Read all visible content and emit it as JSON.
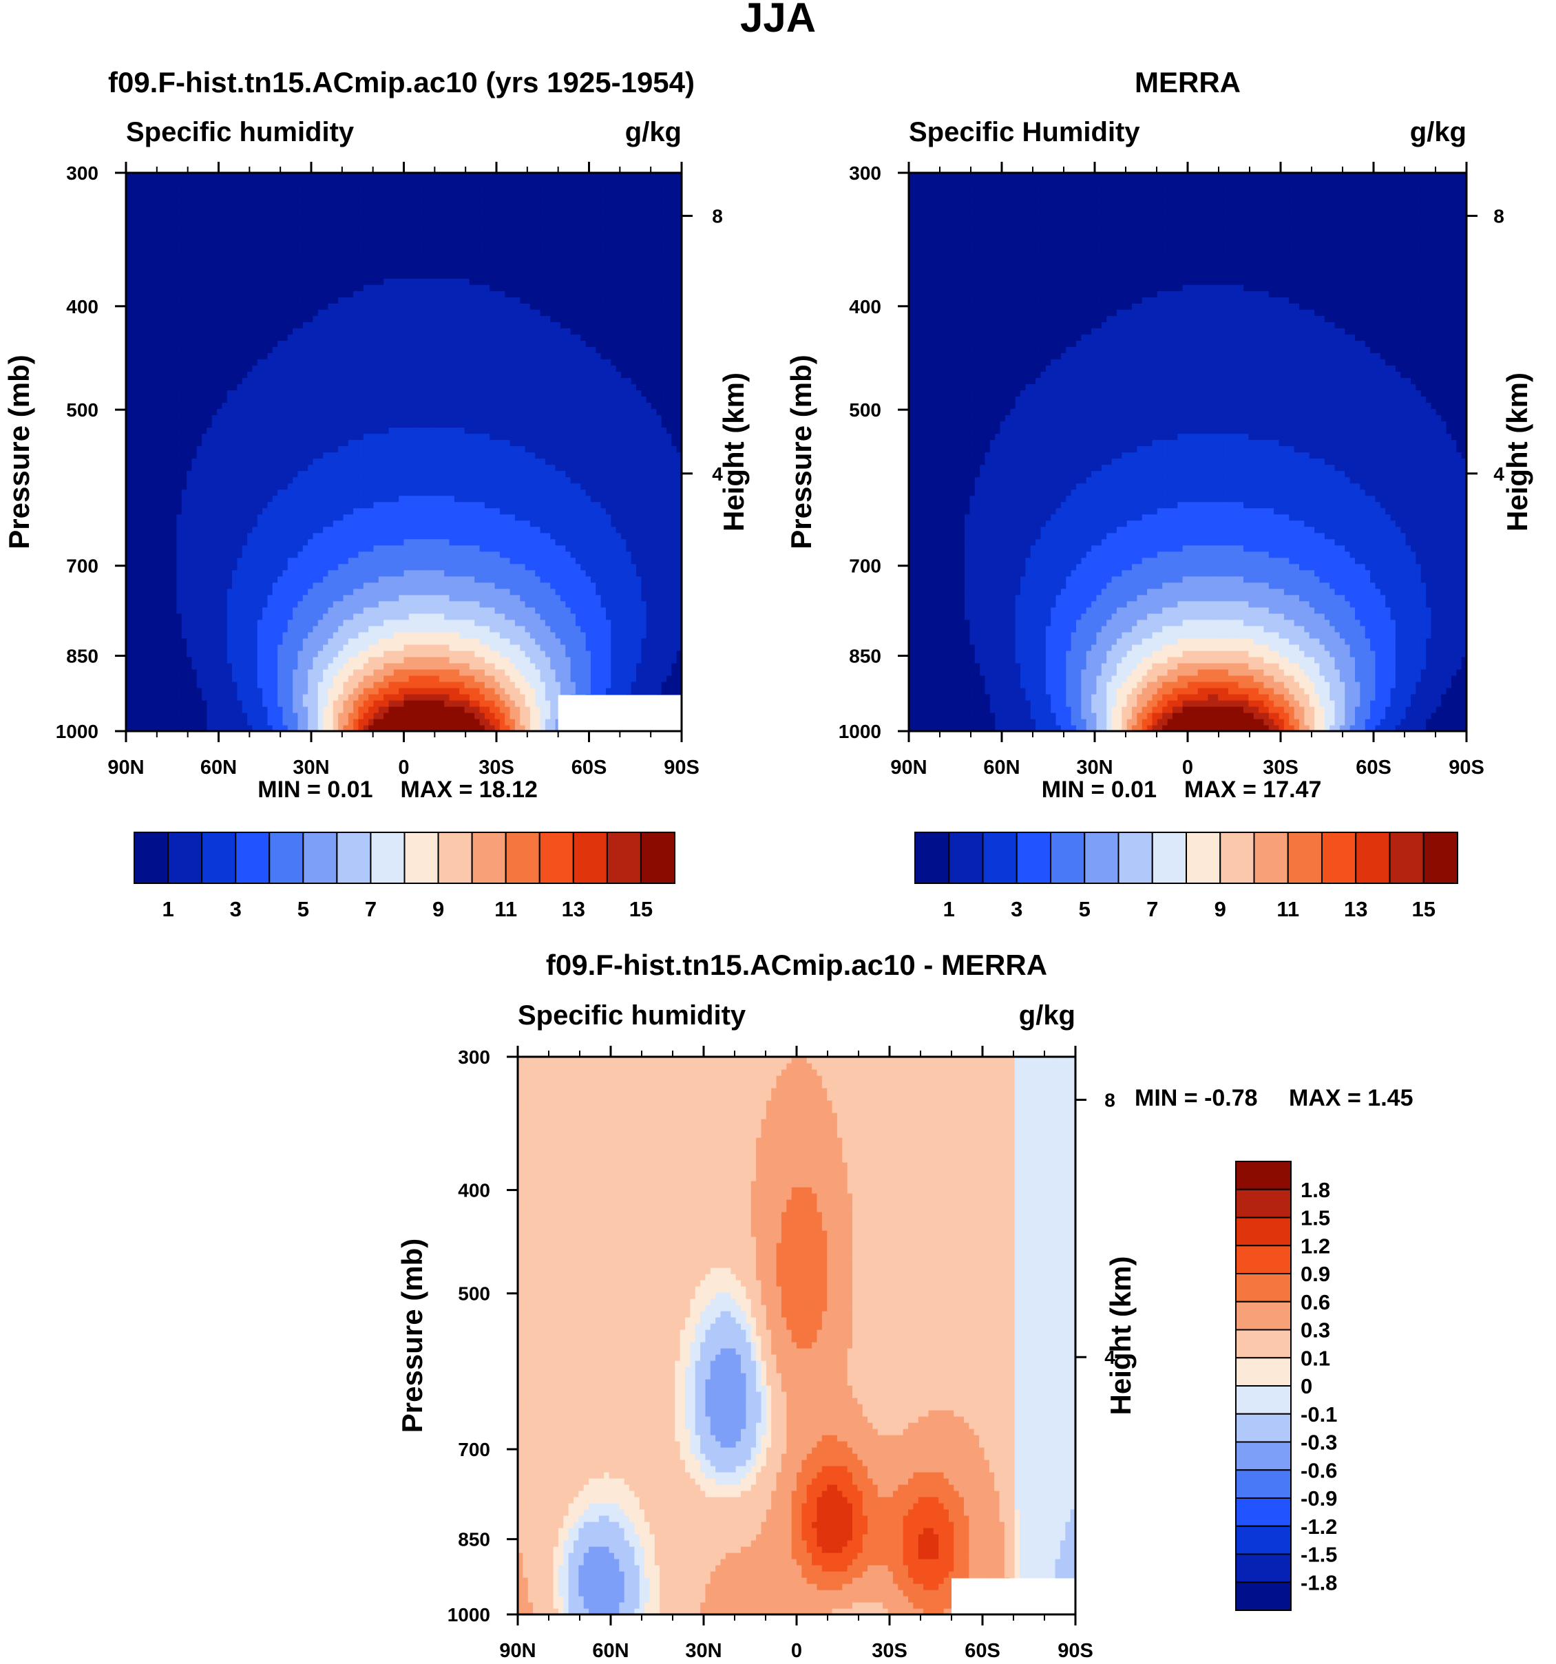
{
  "page_title": "JJA",
  "chart_data": [
    {
      "type": "contour",
      "title": "f09.F-hist.tn15.ACmip.ac10 (yrs 1925-1954)",
      "variable": "Specific humidity",
      "units": "g/kg",
      "ylabel": "Pressure (mb)",
      "y2label": "Height (km)",
      "xlabel": "",
      "xlim": [
        90,
        -90
      ],
      "ylim": [
        1000,
        300
      ],
      "x_ticks": [
        90,
        60,
        30,
        0,
        -30,
        -60,
        -90
      ],
      "x_tick_labels": [
        "90N",
        "60N",
        "30N",
        "0",
        "30S",
        "60S",
        "90S"
      ],
      "y_ticks": [
        300,
        400,
        500,
        700,
        850,
        1000
      ],
      "y_tick_labels": [
        "300",
        "400",
        "500",
        "700",
        "850",
        "1000"
      ],
      "y2_ticks": [
        8,
        4
      ],
      "y2_tick_labels": [
        "8",
        "4"
      ],
      "min_label": "MIN =   0.01",
      "max_label": "MAX =  18.12",
      "min": 0.01,
      "max": 18.12,
      "contour_levels": [
        1,
        2,
        3,
        4,
        5,
        6,
        7,
        8,
        9,
        10,
        11,
        12,
        13,
        14,
        15
      ],
      "colorbar_labels": [
        "1",
        "3",
        "5",
        "7",
        "9",
        "11",
        "13",
        "15"
      ],
      "peak_lat": -7,
      "peak_value": 18.12,
      "missing_region": {
        "lat_from": -50,
        "lat_to": -90,
        "p_from": 925,
        "p_to": 1000
      }
    },
    {
      "type": "contour",
      "title": "MERRA",
      "variable": "Specific Humidity",
      "units": "g/kg",
      "ylabel": "Pressure (mb)",
      "y2label": "Height (km)",
      "xlabel": "",
      "xlim": [
        90,
        -90
      ],
      "ylim": [
        1000,
        300
      ],
      "x_ticks": [
        90,
        60,
        30,
        0,
        -30,
        -60,
        -90
      ],
      "x_tick_labels": [
        "90N",
        "60N",
        "30N",
        "0",
        "30S",
        "60S",
        "90S"
      ],
      "y_ticks": [
        300,
        400,
        500,
        700,
        850,
        1000
      ],
      "y_tick_labels": [
        "300",
        "400",
        "500",
        "700",
        "850",
        "1000"
      ],
      "y2_ticks": [
        8,
        4
      ],
      "y2_tick_labels": [
        "8",
        "4"
      ],
      "min_label": "MIN =   0.01",
      "max_label": "MAX =  17.47",
      "min": 0.01,
      "max": 17.47,
      "contour_levels": [
        1,
        2,
        3,
        4,
        5,
        6,
        7,
        8,
        9,
        10,
        11,
        12,
        13,
        14,
        15
      ],
      "colorbar_labels": [
        "1",
        "3",
        "5",
        "7",
        "9",
        "11",
        "13",
        "15"
      ],
      "peak_lat": -8,
      "peak_value": 17.47,
      "missing_region": null
    },
    {
      "type": "contour",
      "title": "f09.F-hist.tn15.ACmip.ac10 - MERRA",
      "variable": "Specific humidity",
      "units": "g/kg",
      "ylabel": "Pressure (mb)",
      "y2label": "Height (km)",
      "xlabel": "",
      "xlim": [
        90,
        -90
      ],
      "ylim": [
        1000,
        300
      ],
      "x_ticks": [
        90,
        60,
        30,
        0,
        -30,
        -60,
        -90
      ],
      "x_tick_labels": [
        "90N",
        "60N",
        "30N",
        "0",
        "30S",
        "60S",
        "90S"
      ],
      "y_ticks": [
        300,
        400,
        500,
        700,
        850,
        1000
      ],
      "y_tick_labels": [
        "300",
        "400",
        "500",
        "700",
        "850",
        "1000"
      ],
      "y2_ticks": [
        8,
        4
      ],
      "y2_tick_labels": [
        "8",
        "4"
      ],
      "min_label": "MIN =  -0.78",
      "max_label": "MAX =    1.45",
      "min": -0.78,
      "max": 1.45,
      "contour_levels": [
        -1.8,
        -1.5,
        -1.2,
        -0.9,
        -0.6,
        -0.3,
        -0.1,
        0,
        0.1,
        0.3,
        0.6,
        0.9,
        1.2,
        1.5,
        1.8
      ],
      "colorbar_labels": [
        "1.8",
        "1.5",
        "1.2",
        "0.9",
        "0.6",
        "0.3",
        "0.1",
        "0",
        "-0.1",
        "-0.3",
        "-0.6",
        "-0.9",
        "-1.2",
        "-1.5",
        "-1.8"
      ],
      "features": [
        {
          "lat": -12,
          "p": 820,
          "value": 1.3
        },
        {
          "lat": -42,
          "p": 860,
          "value": 1.0
        },
        {
          "lat": -2,
          "p": 480,
          "value": 0.6
        },
        {
          "lat": 22,
          "p": 630,
          "value": -0.75
        },
        {
          "lat": 64,
          "p": 930,
          "value": -0.6
        }
      ],
      "missing_region": {
        "lat_from": -50,
        "lat_to": -90,
        "p_from": 925,
        "p_to": 1000
      }
    }
  ],
  "colors": {
    "humidity_scale": [
      "#000f8c",
      "#0522b4",
      "#0a37d7",
      "#2154ff",
      "#4a79f7",
      "#7d9ff7",
      "#b1c8fb",
      "#dbe9fb",
      "#fde9d8",
      "#fbc8ac",
      "#f8a077",
      "#f6763f",
      "#f4521c",
      "#e0340c",
      "#b3230f",
      "#8c0b00"
    ],
    "diff_scale": [
      "#8c0b00",
      "#b3230f",
      "#e0340c",
      "#f4521c",
      "#f6763f",
      "#f8a077",
      "#fbc8ac",
      "#fde9d8",
      "#dbe9fb",
      "#b1c8fb",
      "#7d9ff7",
      "#4a79f7",
      "#2154ff",
      "#0a37d7",
      "#0522b4",
      "#000f8c"
    ]
  }
}
